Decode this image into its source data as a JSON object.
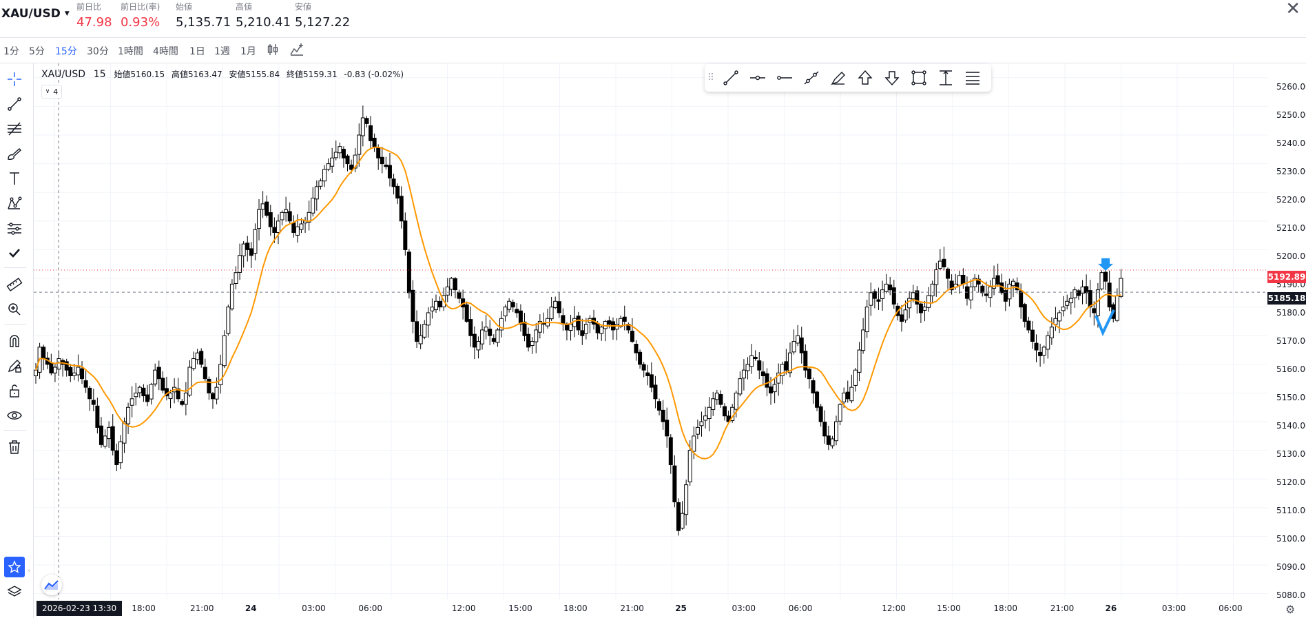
{
  "header": {
    "symbol": "XAU/USD",
    "stats": [
      {
        "label": "前日比",
        "value": "47.98",
        "negative": true
      },
      {
        "label": "前日比(率)",
        "value": "0.93%",
        "negative": true
      },
      {
        "label": "始値",
        "value": "5,135.71",
        "negative": false
      },
      {
        "label": "高値",
        "value": "5,210.41",
        "negative": false
      },
      {
        "label": "安値",
        "value": "5,127.22",
        "negative": false
      }
    ],
    "close_symbol": "✕"
  },
  "timeframes": {
    "items": [
      "1分",
      "5分",
      "15分",
      "30分",
      "1時間",
      "4時間",
      "1日",
      "1週",
      "1月"
    ],
    "active": "15分",
    "chart_type_icon": "candles-icon",
    "indicators_icon": "indicators-icon"
  },
  "left_toolbar": {
    "tools": [
      "crosshair-icon",
      "trend-line-icon",
      "fib-icon",
      "brush-icon",
      "text-icon",
      "pattern-icon",
      "prediction-icon",
      "check-icon",
      "ruler-icon",
      "zoom-icon",
      "magnet-icon",
      "lock-drawings-icon",
      "unlock-icon",
      "eye-icon",
      "trash-icon"
    ],
    "favorites_icon": "star-icon",
    "layers_icon": "layers-icon"
  },
  "legend": {
    "symbol": "XAU/USD",
    "interval": "15",
    "open_label": "始値",
    "open": "5160.15",
    "high_label": "高値",
    "high": "5163.47",
    "low_label": "安値",
    "low": "5155.84",
    "close_label": "終値",
    "close": "5159.31",
    "change": "-0.83 (-0.02%)",
    "collapsed_count": "4"
  },
  "drawing_toolbar": {
    "tools": [
      "line-icon",
      "horizontal-ray-icon",
      "horizontal-line-icon",
      "trend-angle-icon",
      "brush-icon",
      "arrow-up-icon",
      "arrow-down-icon",
      "rectangle-icon",
      "price-range-icon",
      "text-lines-icon"
    ]
  },
  "price_axis": {
    "labels": [
      "5260.00",
      "5250.00",
      "5240.00",
      "5230.00",
      "5220.00",
      "5210.00",
      "5200.00",
      "5190.00",
      "5180.00",
      "5170.00",
      "5160.00",
      "5150.00",
      "5140.00",
      "5130.00",
      "5120.00",
      "5110.00",
      "5100.00",
      "5090.00",
      "5080.00"
    ],
    "red_tag": "5192.89",
    "black_tag": "5185.18",
    "red_color": "#f23645",
    "black_color": "#131722"
  },
  "time_axis": {
    "cursor_label": "2026-02-23  13:30",
    "labels": [
      {
        "t": "18:00",
        "bold": false
      },
      {
        "t": "21:00",
        "bold": false
      },
      {
        "t": "24",
        "bold": true
      },
      {
        "t": "03:00",
        "bold": false
      },
      {
        "t": "06:00",
        "bold": false
      },
      {
        "t": "12:00",
        "bold": false
      },
      {
        "t": "15:00",
        "bold": false
      },
      {
        "t": "18:00",
        "bold": false
      },
      {
        "t": "21:00",
        "bold": false
      },
      {
        "t": "25",
        "bold": true
      },
      {
        "t": "03:00",
        "bold": false
      },
      {
        "t": "06:00",
        "bold": false
      },
      {
        "t": "12:00",
        "bold": false
      },
      {
        "t": "15:00",
        "bold": false
      },
      {
        "t": "18:00",
        "bold": false
      },
      {
        "t": "21:00",
        "bold": false
      },
      {
        "t": "26",
        "bold": true
      },
      {
        "t": "03:00",
        "bold": false
      },
      {
        "t": "06:00",
        "bold": false
      }
    ]
  },
  "chart_data": {
    "type": "candlestick",
    "ylim": [
      5078,
      5265
    ],
    "grid": true,
    "ma_color": "#ff9800",
    "candle_color": "#000000",
    "series": [
      {
        "name": "",
        "values": [
          5158,
          5166,
          5162,
          5160,
          5157,
          5159,
          5162,
          5160,
          5158,
          5156,
          5157,
          5159,
          5155,
          5152,
          5148,
          5146,
          5138,
          5132,
          5135,
          5138,
          5130,
          5125,
          5133,
          5140,
          5145,
          5148,
          5150,
          5152,
          5149,
          5147,
          5153,
          5158,
          5155,
          5151,
          5149,
          5150,
          5152,
          5148,
          5146,
          5150,
          5159,
          5162,
          5164,
          5160,
          5155,
          5150,
          5148,
          5152,
          5160,
          5170,
          5180,
          5188,
          5192,
          5198,
          5202,
          5200,
          5198,
          5207,
          5214,
          5216,
          5212,
          5208,
          5206,
          5210,
          5213,
          5214,
          5210,
          5206,
          5208,
          5209,
          5210,
          5213,
          5218,
          5222,
          5224,
          5228,
          5230,
          5232,
          5234,
          5236,
          5232,
          5230,
          5228,
          5233,
          5240,
          5246,
          5244,
          5238,
          5236,
          5232,
          5230,
          5229,
          5225,
          5222,
          5218,
          5210,
          5200,
          5185,
          5175,
          5168,
          5170,
          5174,
          5178,
          5180,
          5182,
          5180,
          5184,
          5187,
          5190,
          5186,
          5183,
          5180,
          5175,
          5170,
          5166,
          5168,
          5172,
          5173,
          5170,
          5168,
          5172,
          5176,
          5180,
          5182,
          5180,
          5178,
          5174,
          5170,
          5166,
          5168,
          5172,
          5175,
          5174,
          5176,
          5180,
          5182,
          5178,
          5174,
          5172,
          5174,
          5176,
          5172,
          5170,
          5174,
          5176,
          5174,
          5171,
          5173,
          5175,
          5174,
          5172,
          5174,
          5176,
          5175,
          5172,
          5168,
          5164,
          5160,
          5158,
          5156,
          5152,
          5148,
          5144,
          5140,
          5135,
          5125,
          5112,
          5102,
          5108,
          5118,
          5130,
          5135,
          5138,
          5140,
          5142,
          5145,
          5148,
          5150,
          5146,
          5142,
          5140,
          5145,
          5150,
          5155,
          5158,
          5160,
          5163,
          5162,
          5158,
          5156,
          5152,
          5150,
          5153,
          5157,
          5160,
          5158,
          5164,
          5168,
          5170,
          5164,
          5158,
          5155,
          5150,
          5145,
          5140,
          5135,
          5132,
          5134,
          5140,
          5146,
          5150,
          5148,
          5152,
          5158,
          5165,
          5172,
          5180,
          5185,
          5183,
          5182,
          5186,
          5188,
          5186,
          5181,
          5177,
          5175,
          5179,
          5183,
          5185,
          5181,
          5178,
          5180,
          5184,
          5188,
          5193,
          5196,
          5194,
          5190,
          5186,
          5188,
          5191,
          5188,
          5183,
          5187,
          5190,
          5188,
          5185,
          5184,
          5187,
          5190,
          5188,
          5185,
          5182,
          5188,
          5189,
          5186,
          5180,
          5175,
          5172,
          5168,
          5165,
          5163,
          5166,
          5170,
          5173,
          5176,
          5178,
          5180,
          5182,
          5183,
          5186,
          5184,
          5187,
          5185,
          5180,
          5178,
          5186,
          5192,
          5189,
          5180,
          5176,
          5184,
          5190
        ]
      }
    ],
    "last_price": 5185.18,
    "marker_price": 5192.89
  }
}
